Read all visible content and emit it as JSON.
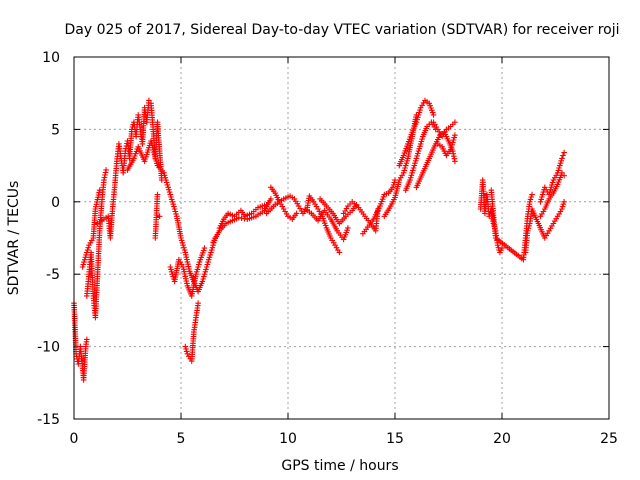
{
  "chart_data": {
    "type": "scatter",
    "title": "Day 025 of 2017, Sidereal Day-to-day VTEC variation (SDTVAR) for receiver roji",
    "xlabel": "GPS time / hours",
    "ylabel": "SDTVAR / TECUs",
    "xlim": [
      0,
      25
    ],
    "ylim": [
      -15,
      10
    ],
    "xticks": [
      "0",
      "5",
      "10",
      "15",
      "20",
      "25"
    ],
    "yticks": [
      "-15",
      "-10",
      "-5",
      "0",
      "5",
      "10"
    ],
    "grid": true,
    "marker": "plus",
    "color": "#ff0000",
    "series": [
      {
        "name": "",
        "points": [
          [
            0.0,
            -7.0
          ],
          [
            0.1,
            -10.5
          ],
          [
            0.2,
            -11.2
          ],
          [
            0.3,
            -10.0
          ],
          [
            0.4,
            -11.5
          ],
          [
            0.45,
            -12.3
          ],
          [
            0.55,
            -10.0
          ],
          [
            0.6,
            -9.5
          ],
          [
            0.6,
            -6.5
          ],
          [
            0.7,
            -5.0
          ],
          [
            0.8,
            -3.5
          ],
          [
            0.9,
            -6.5
          ],
          [
            1.0,
            -8.0
          ],
          [
            1.1,
            -5.0
          ],
          [
            1.2,
            -2.0
          ],
          [
            1.3,
            0.0
          ],
          [
            1.4,
            1.5
          ],
          [
            1.5,
            2.2
          ],
          [
            0.4,
            -4.5
          ],
          [
            0.5,
            -4.0
          ],
          [
            0.7,
            -3.0
          ],
          [
            0.9,
            -2.5
          ],
          [
            1.0,
            -0.5
          ],
          [
            1.2,
            0.8
          ],
          [
            1.1,
            -1.5
          ],
          [
            1.6,
            -1.0
          ],
          [
            1.7,
            -2.5
          ],
          [
            1.8,
            -0.5
          ],
          [
            1.9,
            1.0
          ],
          [
            2.0,
            2.8
          ],
          [
            2.1,
            4.0
          ],
          [
            2.2,
            3.0
          ],
          [
            2.3,
            2.0
          ],
          [
            2.4,
            3.5
          ],
          [
            2.5,
            4.2
          ],
          [
            2.6,
            3.0
          ],
          [
            2.7,
            5.0
          ],
          [
            2.8,
            5.5
          ],
          [
            2.9,
            4.5
          ],
          [
            3.0,
            6.0
          ],
          [
            3.1,
            5.0
          ],
          [
            3.2,
            4.0
          ],
          [
            3.3,
            6.5
          ],
          [
            3.4,
            5.5
          ],
          [
            3.5,
            7.0
          ],
          [
            3.6,
            6.8
          ],
          [
            3.7,
            5.0
          ],
          [
            3.8,
            3.0
          ],
          [
            3.9,
            5.5
          ],
          [
            4.0,
            3.5
          ],
          [
            4.1,
            1.5
          ],
          [
            4.0,
            -1.0
          ],
          [
            3.8,
            -2.5
          ],
          [
            3.9,
            0.5
          ],
          [
            2.5,
            2.2
          ],
          [
            2.8,
            3.0
          ],
          [
            3.0,
            3.8
          ],
          [
            3.3,
            2.8
          ],
          [
            3.6,
            4.2
          ],
          [
            3.9,
            2.5
          ],
          [
            4.2,
            2.0
          ],
          [
            4.4,
            1.0
          ],
          [
            4.6,
            0.0
          ],
          [
            4.8,
            -1.0
          ],
          [
            5.0,
            -2.5
          ],
          [
            5.2,
            -3.5
          ],
          [
            5.4,
            -4.8
          ],
          [
            5.6,
            -5.5
          ],
          [
            5.8,
            -6.2
          ],
          [
            6.0,
            -5.5
          ],
          [
            6.2,
            -4.5
          ],
          [
            6.4,
            -3.5
          ],
          [
            6.6,
            -2.5
          ],
          [
            4.5,
            -4.5
          ],
          [
            4.7,
            -5.5
          ],
          [
            4.9,
            -4.0
          ],
          [
            5.1,
            -4.5
          ],
          [
            5.3,
            -5.8
          ],
          [
            5.5,
            -6.5
          ],
          [
            5.7,
            -5.0
          ],
          [
            5.9,
            -4.0
          ],
          [
            6.1,
            -3.2
          ],
          [
            5.2,
            -10.0
          ],
          [
            5.3,
            -10.5
          ],
          [
            5.5,
            -11.0
          ],
          [
            5.6,
            -9.0
          ],
          [
            5.7,
            -8.0
          ],
          [
            5.8,
            -7.0
          ],
          [
            6.8,
            -1.8
          ],
          [
            7.0,
            -1.2
          ],
          [
            7.2,
            -0.8
          ],
          [
            7.5,
            -1.0
          ],
          [
            7.8,
            -0.6
          ],
          [
            8.0,
            -1.0
          ],
          [
            8.3,
            -0.8
          ],
          [
            8.6,
            -0.4
          ],
          [
            9.0,
            -0.2
          ],
          [
            6.5,
            -2.8
          ],
          [
            6.8,
            -2.0
          ],
          [
            7.1,
            -1.5
          ],
          [
            7.4,
            -1.3
          ],
          [
            7.7,
            -1.1
          ],
          [
            8.1,
            -1.2
          ],
          [
            8.5,
            -1.0
          ],
          [
            8.9,
            -0.6
          ],
          [
            9.2,
            0.2
          ],
          [
            9.2,
            1.0
          ],
          [
            9.4,
            0.6
          ],
          [
            9.6,
            0.0
          ],
          [
            9.8,
            -0.5
          ],
          [
            10.0,
            -1.0
          ],
          [
            10.2,
            -1.2
          ],
          [
            10.4,
            -0.8
          ],
          [
            9.0,
            -0.8
          ],
          [
            9.4,
            -0.2
          ],
          [
            9.8,
            0.2
          ],
          [
            10.1,
            0.4
          ],
          [
            10.3,
            0.2
          ],
          [
            10.5,
            -0.3
          ],
          [
            10.7,
            -0.8
          ],
          [
            10.9,
            -0.4
          ],
          [
            11.0,
            0.4
          ],
          [
            11.2,
            0.0
          ],
          [
            11.4,
            -0.5
          ],
          [
            11.6,
            -1.0
          ],
          [
            11.8,
            -1.8
          ],
          [
            12.0,
            -2.5
          ],
          [
            12.2,
            -3.0
          ],
          [
            12.4,
            -3.5
          ],
          [
            10.8,
            -0.5
          ],
          [
            11.1,
            -0.8
          ],
          [
            11.4,
            -1.3
          ],
          [
            11.7,
            -0.6
          ],
          [
            12.0,
            -1.2
          ],
          [
            12.3,
            -2.0
          ],
          [
            12.6,
            -2.6
          ],
          [
            12.8,
            -1.8
          ],
          [
            11.5,
            0.2
          ],
          [
            11.8,
            -0.3
          ],
          [
            12.1,
            -0.8
          ],
          [
            12.4,
            -1.5
          ],
          [
            12.7,
            -1.0
          ],
          [
            13.0,
            -0.6
          ],
          [
            13.2,
            -0.2
          ],
          [
            12.6,
            -0.8
          ],
          [
            12.8,
            -0.3
          ],
          [
            13.0,
            0.0
          ],
          [
            13.3,
            -0.4
          ],
          [
            13.6,
            -1.0
          ],
          [
            13.9,
            -1.6
          ],
          [
            14.1,
            -2.0
          ],
          [
            14.2,
            -0.5
          ],
          [
            13.5,
            -2.2
          ],
          [
            13.8,
            -1.6
          ],
          [
            14.0,
            -1.2
          ],
          [
            14.3,
            -0.3
          ],
          [
            14.5,
            0.5
          ],
          [
            14.7,
            0.6
          ],
          [
            14.9,
            1.0
          ],
          [
            15.0,
            1.5
          ],
          [
            14.5,
            -1.0
          ],
          [
            14.8,
            -0.3
          ],
          [
            15.0,
            0.3
          ],
          [
            15.2,
            1.5
          ],
          [
            15.4,
            2.0
          ],
          [
            15.6,
            3.0
          ],
          [
            15.8,
            4.5
          ],
          [
            16.0,
            6.0
          ],
          [
            15.2,
            2.5
          ],
          [
            15.4,
            3.2
          ],
          [
            15.6,
            4.0
          ],
          [
            15.8,
            4.8
          ],
          [
            16.0,
            5.5
          ],
          [
            16.2,
            6.5
          ],
          [
            16.4,
            7.0
          ],
          [
            16.6,
            6.8
          ],
          [
            16.8,
            6.0
          ],
          [
            15.5,
            0.8
          ],
          [
            15.7,
            1.5
          ],
          [
            15.9,
            2.5
          ],
          [
            16.1,
            3.5
          ],
          [
            16.3,
            4.5
          ],
          [
            16.5,
            5.2
          ],
          [
            16.7,
            5.5
          ],
          [
            16.9,
            5.0
          ],
          [
            16.0,
            1.0
          ],
          [
            16.3,
            2.0
          ],
          [
            16.6,
            3.0
          ],
          [
            16.9,
            4.0
          ],
          [
            17.1,
            4.6
          ],
          [
            17.3,
            4.8
          ],
          [
            17.5,
            4.2
          ],
          [
            17.7,
            3.5
          ],
          [
            17.8,
            2.8
          ],
          [
            16.8,
            5.5
          ],
          [
            17.0,
            5.0
          ],
          [
            17.2,
            4.5
          ],
          [
            17.4,
            5.0
          ],
          [
            17.6,
            5.2
          ],
          [
            17.8,
            5.5
          ],
          [
            17.0,
            4.0
          ],
          [
            17.2,
            3.8
          ],
          [
            17.4,
            3.2
          ],
          [
            17.6,
            3.6
          ],
          [
            17.8,
            4.6
          ],
          [
            19.0,
            -0.5
          ],
          [
            19.1,
            1.5
          ],
          [
            19.2,
            -0.8
          ],
          [
            19.3,
            0.5
          ],
          [
            19.4,
            -1.0
          ],
          [
            19.5,
            -0.5
          ],
          [
            19.6,
            -1.5
          ],
          [
            19.7,
            -2.0
          ],
          [
            19.8,
            -3.0
          ],
          [
            19.9,
            -3.5
          ],
          [
            20.0,
            -3.2
          ],
          [
            19.5,
            0.8
          ],
          [
            19.7,
            -2.5
          ],
          [
            21.0,
            -4.0
          ],
          [
            21.1,
            -2.5
          ],
          [
            21.2,
            -1.0
          ],
          [
            21.3,
            0.0
          ],
          [
            21.4,
            0.5
          ],
          [
            21.1,
            -3.5
          ],
          [
            21.2,
            -2.0
          ],
          [
            21.3,
            -1.5
          ],
          [
            21.4,
            -0.5
          ],
          [
            22.0,
            -2.5
          ],
          [
            22.2,
            -2.0
          ],
          [
            22.4,
            -1.5
          ],
          [
            22.6,
            -1.0
          ],
          [
            22.8,
            -0.5
          ],
          [
            22.9,
            0.0
          ],
          [
            21.8,
            0.0
          ],
          [
            22.0,
            1.0
          ],
          [
            22.2,
            0.5
          ],
          [
            22.4,
            1.5
          ],
          [
            22.6,
            2.0
          ],
          [
            22.8,
            3.0
          ],
          [
            22.9,
            3.4
          ],
          [
            21.8,
            -1.0
          ],
          [
            22.0,
            -0.5
          ],
          [
            22.2,
            0.2
          ],
          [
            22.4,
            0.6
          ],
          [
            22.6,
            1.2
          ],
          [
            22.8,
            2.0
          ],
          [
            22.9,
            1.8
          ]
        ]
      }
    ]
  }
}
